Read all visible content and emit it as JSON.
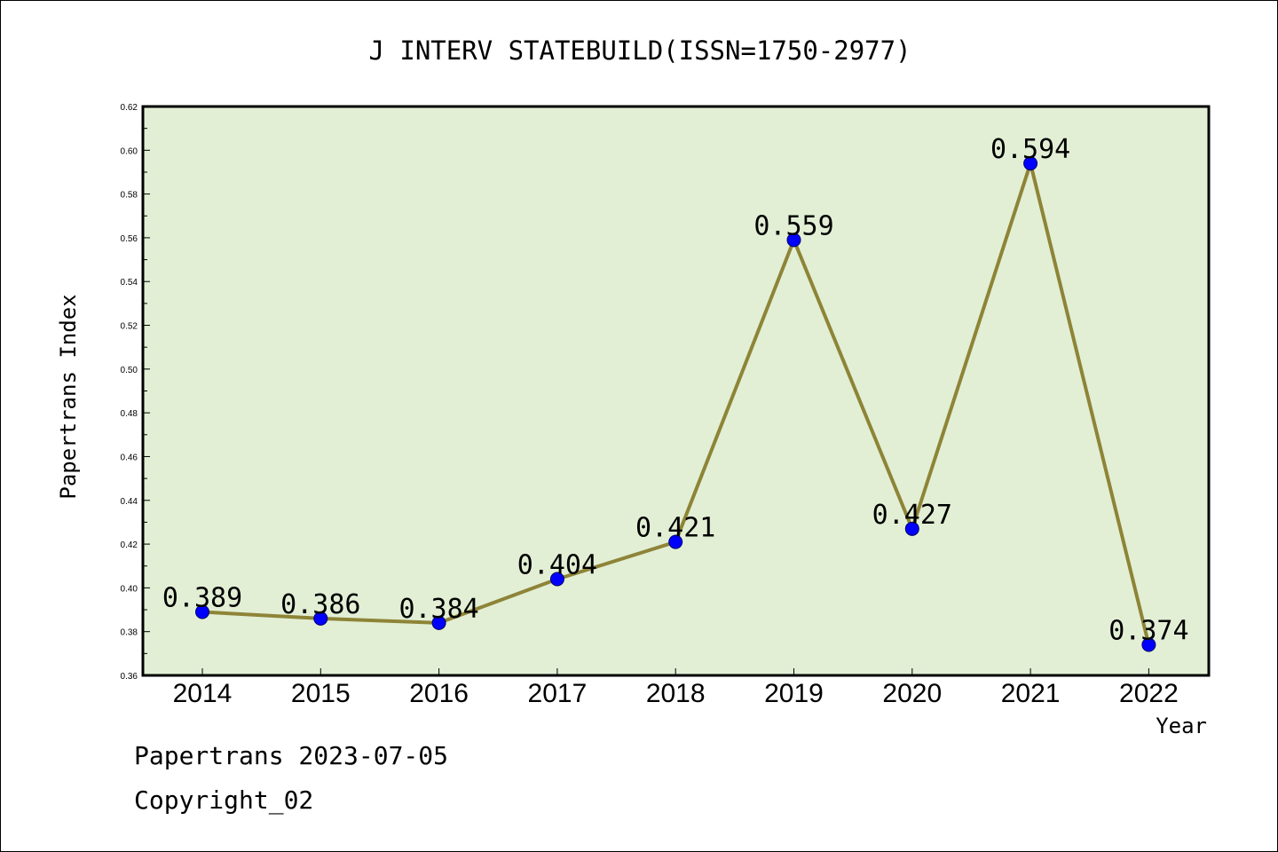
{
  "chart_data": {
    "type": "line",
    "title": "J INTERV STATEBUILD(ISSN=1750-2977)",
    "xlabel": "Year",
    "ylabel": "Papertrans Index",
    "categories": [
      "2014",
      "2015",
      "2016",
      "2017",
      "2018",
      "2019",
      "2020",
      "2021",
      "2022"
    ],
    "series": [
      {
        "values": [
          0.389,
          0.386,
          0.384,
          0.404,
          0.421,
          0.559,
          0.427,
          0.594,
          0.374
        ],
        "labels": [
          "0.389",
          "0.386",
          "0.384",
          "0.404",
          "0.421",
          "0.559",
          "0.427",
          "0.594",
          "0.374"
        ]
      }
    ],
    "ylim": [
      0.36,
      0.62
    ],
    "yticks": [
      "0.36",
      "0.38",
      "0.40",
      "0.42",
      "0.44",
      "0.46",
      "0.48",
      "0.50",
      "0.52",
      "0.54",
      "0.56",
      "0.58",
      "0.60",
      "0.62"
    ],
    "grid": false,
    "colors": {
      "plot_background": "#e2efd5",
      "line": "#8e8437",
      "marker": "#0000ff"
    }
  },
  "footer": {
    "line1": "Papertrans 2023-07-05",
    "line2": "Copyright_02"
  }
}
